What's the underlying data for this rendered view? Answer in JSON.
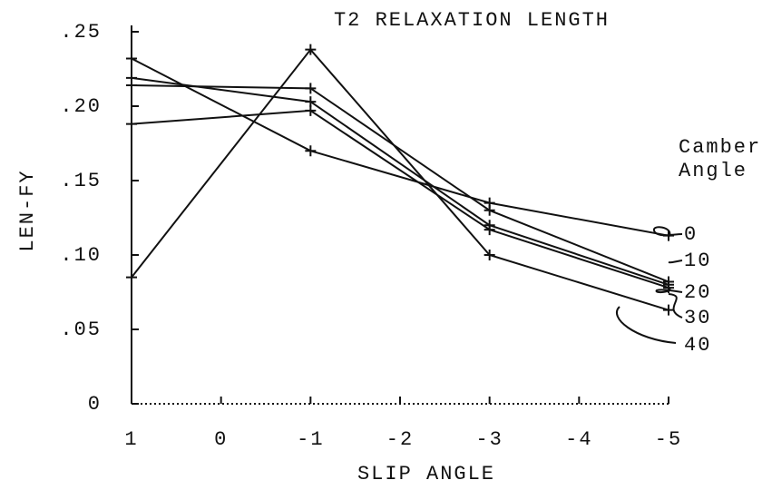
{
  "chart_data": {
    "type": "line",
    "title": "T2 RELAXATION LENGTH",
    "x_label": "SLIP ANGLE",
    "y_label": "LEN-FY",
    "legend_title": [
      "Camber",
      "Angle"
    ],
    "x": [
      1,
      -1,
      -3,
      -5
    ],
    "xlim": [
      1,
      -5
    ],
    "xticks": [
      1,
      0,
      -1,
      -2,
      -3,
      -4,
      -5
    ],
    "ylim": [
      0,
      0.25
    ],
    "yticks": [
      {
        "value": 0.25,
        "label": ".25"
      },
      {
        "value": 0.2,
        "label": ".20"
      },
      {
        "value": 0.15,
        "label": ".15"
      },
      {
        "value": 0.1,
        "label": ".10"
      },
      {
        "value": 0.05,
        "label": ".05"
      },
      0
    ],
    "series": [
      {
        "name": "0",
        "color": "#111111",
        "values": [
          0.232,
          0.17,
          0.135,
          0.113
        ]
      },
      {
        "name": "10",
        "color": "#111111",
        "values": [
          0.214,
          0.212,
          0.13,
          0.082
        ]
      },
      {
        "name": "20",
        "color": "#111111",
        "values": [
          0.219,
          0.203,
          0.12,
          0.08
        ]
      },
      {
        "name": "30",
        "color": "#111111",
        "values": [
          0.188,
          0.197,
          0.117,
          0.078
        ]
      },
      {
        "name": "40",
        "color": "#111111",
        "values": [
          0.085,
          0.238,
          0.1,
          0.063
        ]
      }
    ]
  }
}
